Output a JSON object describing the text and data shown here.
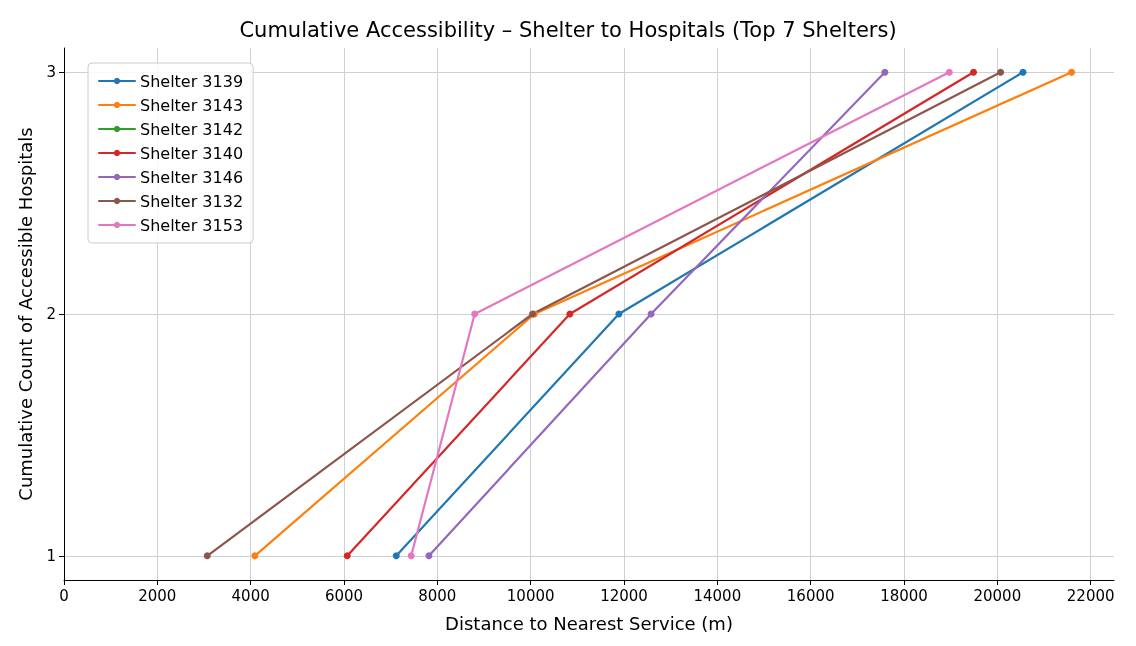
{
  "chart_data": {
    "type": "line",
    "title": "Cumulative Accessibility – Shelter to Hospitals (Top 7 Shelters)",
    "xlabel": "Distance to Nearest Service (m)",
    "ylabel": "Cumulative Count of Accessible Hospitals",
    "series": [
      {
        "name": "Shelter 3139",
        "color": "#1f77b4",
        "x": [
          7120,
          11890,
          20550
        ],
        "values": [
          1,
          2,
          3
        ]
      },
      {
        "name": "Shelter 3143",
        "color": "#ff7f0e",
        "x": [
          4090,
          10080,
          21590
        ],
        "values": [
          1,
          2,
          3
        ]
      },
      {
        "name": "Shelter 3142",
        "color": "#2ca02c",
        "x": [
          null,
          null,
          null
        ],
        "values": [
          null,
          null,
          null
        ]
      },
      {
        "name": "Shelter 3140",
        "color": "#d62728",
        "x": [
          6070,
          10840,
          19490
        ],
        "values": [
          1,
          2,
          3
        ]
      },
      {
        "name": "Shelter 3146",
        "color": "#9467bd",
        "x": [
          7820,
          12580,
          17590
        ],
        "values": [
          1,
          2,
          3
        ]
      },
      {
        "name": "Shelter 3132",
        "color": "#8c564b",
        "x": [
          3070,
          10040,
          20070
        ],
        "values": [
          1,
          2,
          3
        ]
      },
      {
        "name": "Shelter 3153",
        "color": "#e377c2",
        "x": [
          7440,
          8800,
          18970
        ],
        "values": [
          1,
          2,
          3
        ]
      }
    ],
    "xlim": [
      0,
      22500
    ],
    "xticks": [
      0,
      2000,
      4000,
      6000,
      8000,
      10000,
      12000,
      14000,
      16000,
      18000,
      20000,
      22000
    ],
    "ylim": [
      0.9,
      3.1
    ],
    "yticks": [
      1,
      2,
      3
    ],
    "grid": true,
    "legend": "top left",
    "marker": "circle",
    "line_style": "solid"
  }
}
